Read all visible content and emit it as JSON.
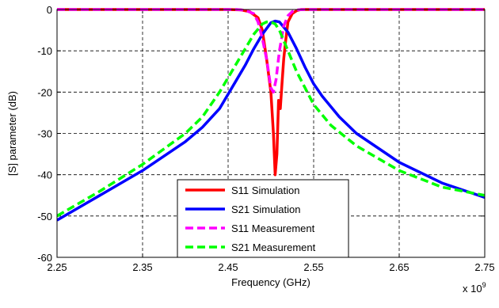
{
  "chart_data": {
    "type": "line",
    "title": "",
    "xlabel": "Frequency (GHz)",
    "ylabel": "[S] parameter (dB)",
    "x_multiplier_label": "x 10",
    "x_multiplier_exponent": "9",
    "xlim": [
      2.25,
      2.75
    ],
    "ylim": [
      -60,
      0
    ],
    "x_ticks": [
      2.25,
      2.35,
      2.45,
      2.55,
      2.65,
      2.75
    ],
    "x_tick_labels": [
      "2.25",
      "2.35",
      "2.45",
      "2.55",
      "2.65",
      "2.75"
    ],
    "y_ticks": [
      -60,
      -50,
      -40,
      -30,
      -20,
      -10,
      0
    ],
    "y_tick_labels": [
      "-60",
      "-50",
      "-40",
      "-30",
      "-20",
      "-10",
      "0"
    ],
    "grid": true,
    "legend_position": "bottom-center",
    "series": [
      {
        "name": "S11 Simulation",
        "color": "#ff0000",
        "dash": "solid",
        "x": [
          2.25,
          2.3,
          2.4,
          2.45,
          2.465,
          2.475,
          2.485,
          2.49,
          2.495,
          2.5,
          2.503,
          2.505,
          2.507,
          2.509,
          2.511,
          2.513,
          2.515,
          2.517,
          2.52,
          2.525,
          2.53,
          2.535,
          2.545,
          2.6,
          2.75
        ],
        "y": [
          0,
          0,
          0,
          0,
          -0.1,
          -0.5,
          -2,
          -5,
          -12,
          -20,
          -30,
          -40,
          -35,
          -22,
          -24,
          -18,
          -12,
          -8,
          -3,
          -1,
          -0.3,
          0,
          0,
          0,
          0
        ]
      },
      {
        "name": "S21 Simulation",
        "color": "#0000ff",
        "dash": "solid",
        "x": [
          2.25,
          2.3,
          2.35,
          2.4,
          2.42,
          2.44,
          2.46,
          2.47,
          2.48,
          2.49,
          2.5,
          2.505,
          2.51,
          2.52,
          2.53,
          2.54,
          2.55,
          2.56,
          2.58,
          2.6,
          2.65,
          2.7,
          2.75
        ],
        "y": [
          -51,
          -45,
          -39,
          -32,
          -28.5,
          -24,
          -17,
          -13.5,
          -9.5,
          -6,
          -3.2,
          -2.8,
          -3,
          -5.5,
          -9.5,
          -14,
          -18,
          -21,
          -26,
          -30,
          -37,
          -42,
          -45.5
        ]
      },
      {
        "name": "S11 Measurement",
        "color": "#ff00ff",
        "dash": "dashed",
        "x": [
          2.25,
          2.3,
          2.4,
          2.46,
          2.47,
          2.48,
          2.485,
          2.49,
          2.495,
          2.5,
          2.503,
          2.506,
          2.51,
          2.515,
          2.52,
          2.525,
          2.53,
          2.54,
          2.6,
          2.75
        ],
        "y": [
          0,
          0,
          0,
          0,
          -0.2,
          -1,
          -3,
          -7,
          -12,
          -19,
          -20,
          -17,
          -10,
          -4,
          -1.5,
          -0.5,
          -0.1,
          0,
          0,
          0
        ]
      },
      {
        "name": "S21 Measurement",
        "color": "#00ff00",
        "dash": "dashed",
        "x": [
          2.25,
          2.3,
          2.35,
          2.4,
          2.42,
          2.44,
          2.46,
          2.47,
          2.48,
          2.49,
          2.495,
          2.5,
          2.505,
          2.51,
          2.52,
          2.53,
          2.54,
          2.55,
          2.57,
          2.6,
          2.65,
          2.7,
          2.75
        ],
        "y": [
          -50,
          -44,
          -37.5,
          -30,
          -26,
          -20,
          -13,
          -9.5,
          -6,
          -3.5,
          -3,
          -3,
          -3.5,
          -5,
          -10,
          -15,
          -19,
          -23,
          -28,
          -33,
          -39,
          -43,
          -45
        ]
      }
    ]
  }
}
